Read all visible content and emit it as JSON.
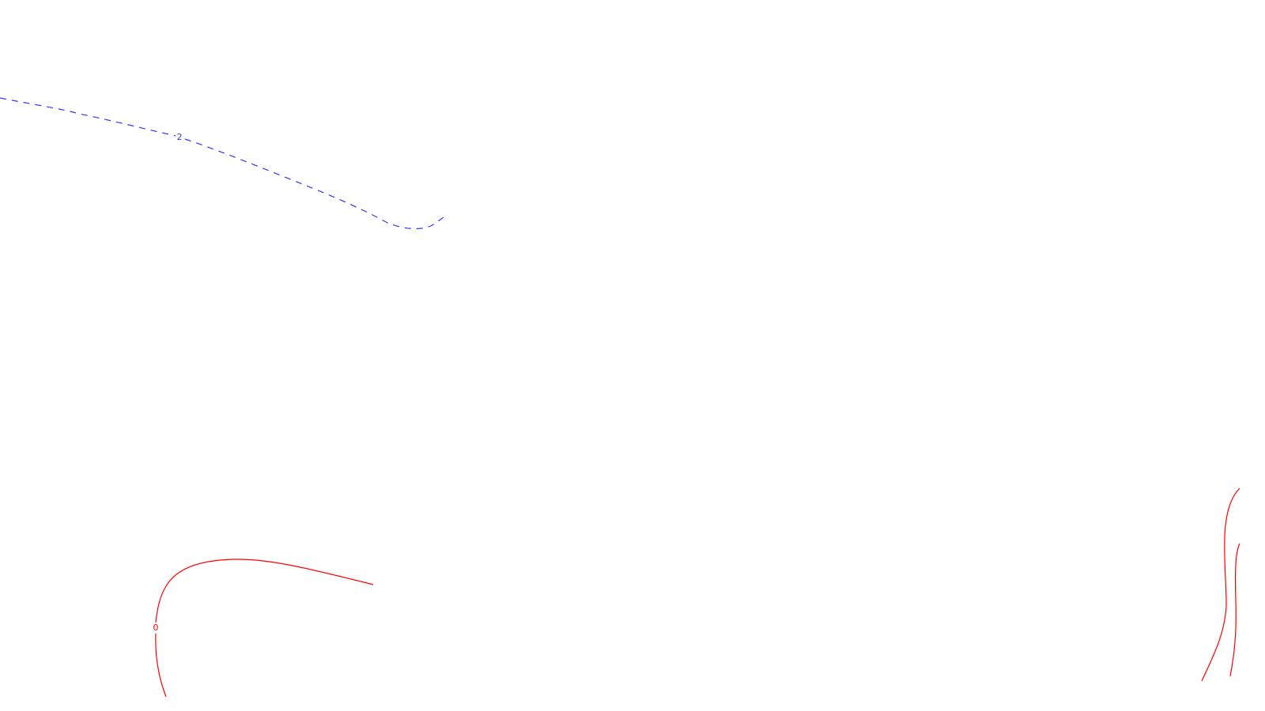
{
  "map": {
    "background_color": "#ffffff",
    "contours": [
      {
        "id": "contour-dashed-blue",
        "label": "2",
        "color": "#3333ff",
        "style": "dashed"
      },
      {
        "id": "contour-red-left",
        "label": "0",
        "color": "#ff0000",
        "style": "solid"
      },
      {
        "id": "contour-red-right-outer",
        "label": "",
        "color": "#ff0000",
        "style": "solid"
      },
      {
        "id": "contour-red-right-inner",
        "label": "",
        "color": "#ff0000",
        "style": "solid"
      }
    ]
  }
}
